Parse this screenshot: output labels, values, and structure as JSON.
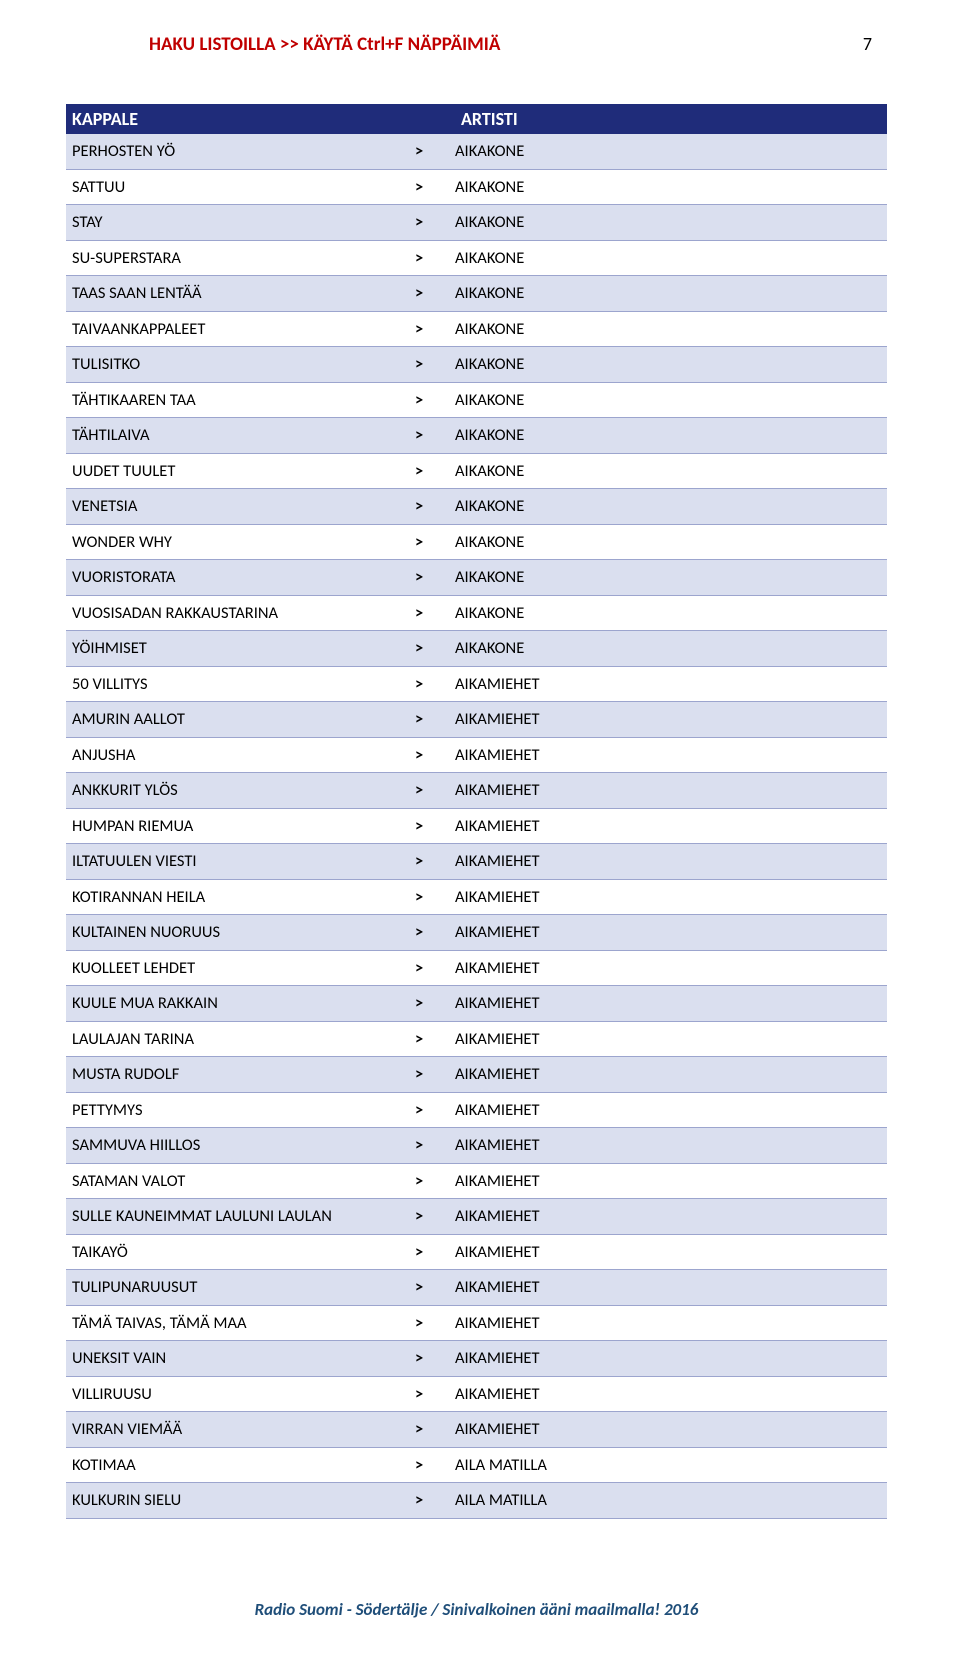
{
  "header": {
    "title": "HAKU LISTOILLA >> KÄYTÄ Ctrl+F NÄPPÄIMIÄ",
    "page_number": "7"
  },
  "table": {
    "col_kappale": "KAPPALE",
    "col_artisti": "ARTISTI",
    "separator": ">",
    "row_alt_bg": "#dadfef",
    "border_color": "#9ca5ce",
    "header_bg": "#1f2c7a",
    "rows": [
      {
        "kappale": "PERHOSTEN YÖ",
        "artisti": "AIKAKONE"
      },
      {
        "kappale": "SATTUU",
        "artisti": "AIKAKONE"
      },
      {
        "kappale": "STAY",
        "artisti": "AIKAKONE"
      },
      {
        "kappale": "SU-SUPERSTARA",
        "artisti": "AIKAKONE"
      },
      {
        "kappale": "TAAS SAAN LENTÄÄ",
        "artisti": "AIKAKONE"
      },
      {
        "kappale": "TAIVAANKAPPALEET",
        "artisti": "AIKAKONE"
      },
      {
        "kappale": "TULISITKO",
        "artisti": "AIKAKONE"
      },
      {
        "kappale": "TÄHTIKAAREN TAA",
        "artisti": "AIKAKONE"
      },
      {
        "kappale": "TÄHTILAIVA",
        "artisti": "AIKAKONE"
      },
      {
        "kappale": "UUDET TUULET",
        "artisti": "AIKAKONE"
      },
      {
        "kappale": "VENETSIA",
        "artisti": "AIKAKONE"
      },
      {
        "kappale": "WONDER WHY",
        "artisti": "AIKAKONE"
      },
      {
        "kappale": "VUORISTORATA",
        "artisti": "AIKAKONE"
      },
      {
        "kappale": "VUOSISADAN RAKKAUSTARINA",
        "artisti": "AIKAKONE"
      },
      {
        "kappale": "YÖIHMISET",
        "artisti": "AIKAKONE"
      },
      {
        "kappale": "50 VILLITYS",
        "artisti": "AIKAMIEHET"
      },
      {
        "kappale": "AMURIN AALLOT",
        "artisti": "AIKAMIEHET"
      },
      {
        "kappale": "ANJUSHA",
        "artisti": "AIKAMIEHET"
      },
      {
        "kappale": "ANKKURIT YLÖS",
        "artisti": "AIKAMIEHET"
      },
      {
        "kappale": "HUMPAN RIEMUA",
        "artisti": "AIKAMIEHET"
      },
      {
        "kappale": "ILTATUULEN VIESTI",
        "artisti": "AIKAMIEHET"
      },
      {
        "kappale": "KOTIRANNAN HEILA",
        "artisti": "AIKAMIEHET"
      },
      {
        "kappale": "KULTAINEN NUORUUS",
        "artisti": "AIKAMIEHET"
      },
      {
        "kappale": "KUOLLEET LEHDET",
        "artisti": "AIKAMIEHET"
      },
      {
        "kappale": "KUULE MUA RAKKAIN",
        "artisti": "AIKAMIEHET"
      },
      {
        "kappale": "LAULAJAN TARINA",
        "artisti": "AIKAMIEHET"
      },
      {
        "kappale": "MUSTA RUDOLF",
        "artisti": "AIKAMIEHET"
      },
      {
        "kappale": "PETTYMYS",
        "artisti": "AIKAMIEHET"
      },
      {
        "kappale": "SAMMUVA HIILLOS",
        "artisti": "AIKAMIEHET"
      },
      {
        "kappale": "SATAMAN VALOT",
        "artisti": "AIKAMIEHET"
      },
      {
        "kappale": "SULLE KAUNEIMMAT LAULUNI LAULAN",
        "artisti": "AIKAMIEHET"
      },
      {
        "kappale": "TAIKAYÖ",
        "artisti": "AIKAMIEHET"
      },
      {
        "kappale": "TULIPUNARUUSUT",
        "artisti": "AIKAMIEHET"
      },
      {
        "kappale": "TÄMÄ TAIVAS, TÄMÄ MAA",
        "artisti": "AIKAMIEHET"
      },
      {
        "kappale": "UNEKSIT VAIN",
        "artisti": "AIKAMIEHET"
      },
      {
        "kappale": "VILLIRUUSU",
        "artisti": "AIKAMIEHET"
      },
      {
        "kappale": "VIRRAN VIEMÄÄ",
        "artisti": "AIKAMIEHET"
      },
      {
        "kappale": "KOTIMAA",
        "artisti": "AILA MATILLA"
      },
      {
        "kappale": "KULKURIN SIELU",
        "artisti": "AILA MATILLA"
      }
    ]
  },
  "footer": {
    "text": "Radio Suomi - Södertälje / Sinivalkoinen ääni maailmalla!  2016"
  }
}
